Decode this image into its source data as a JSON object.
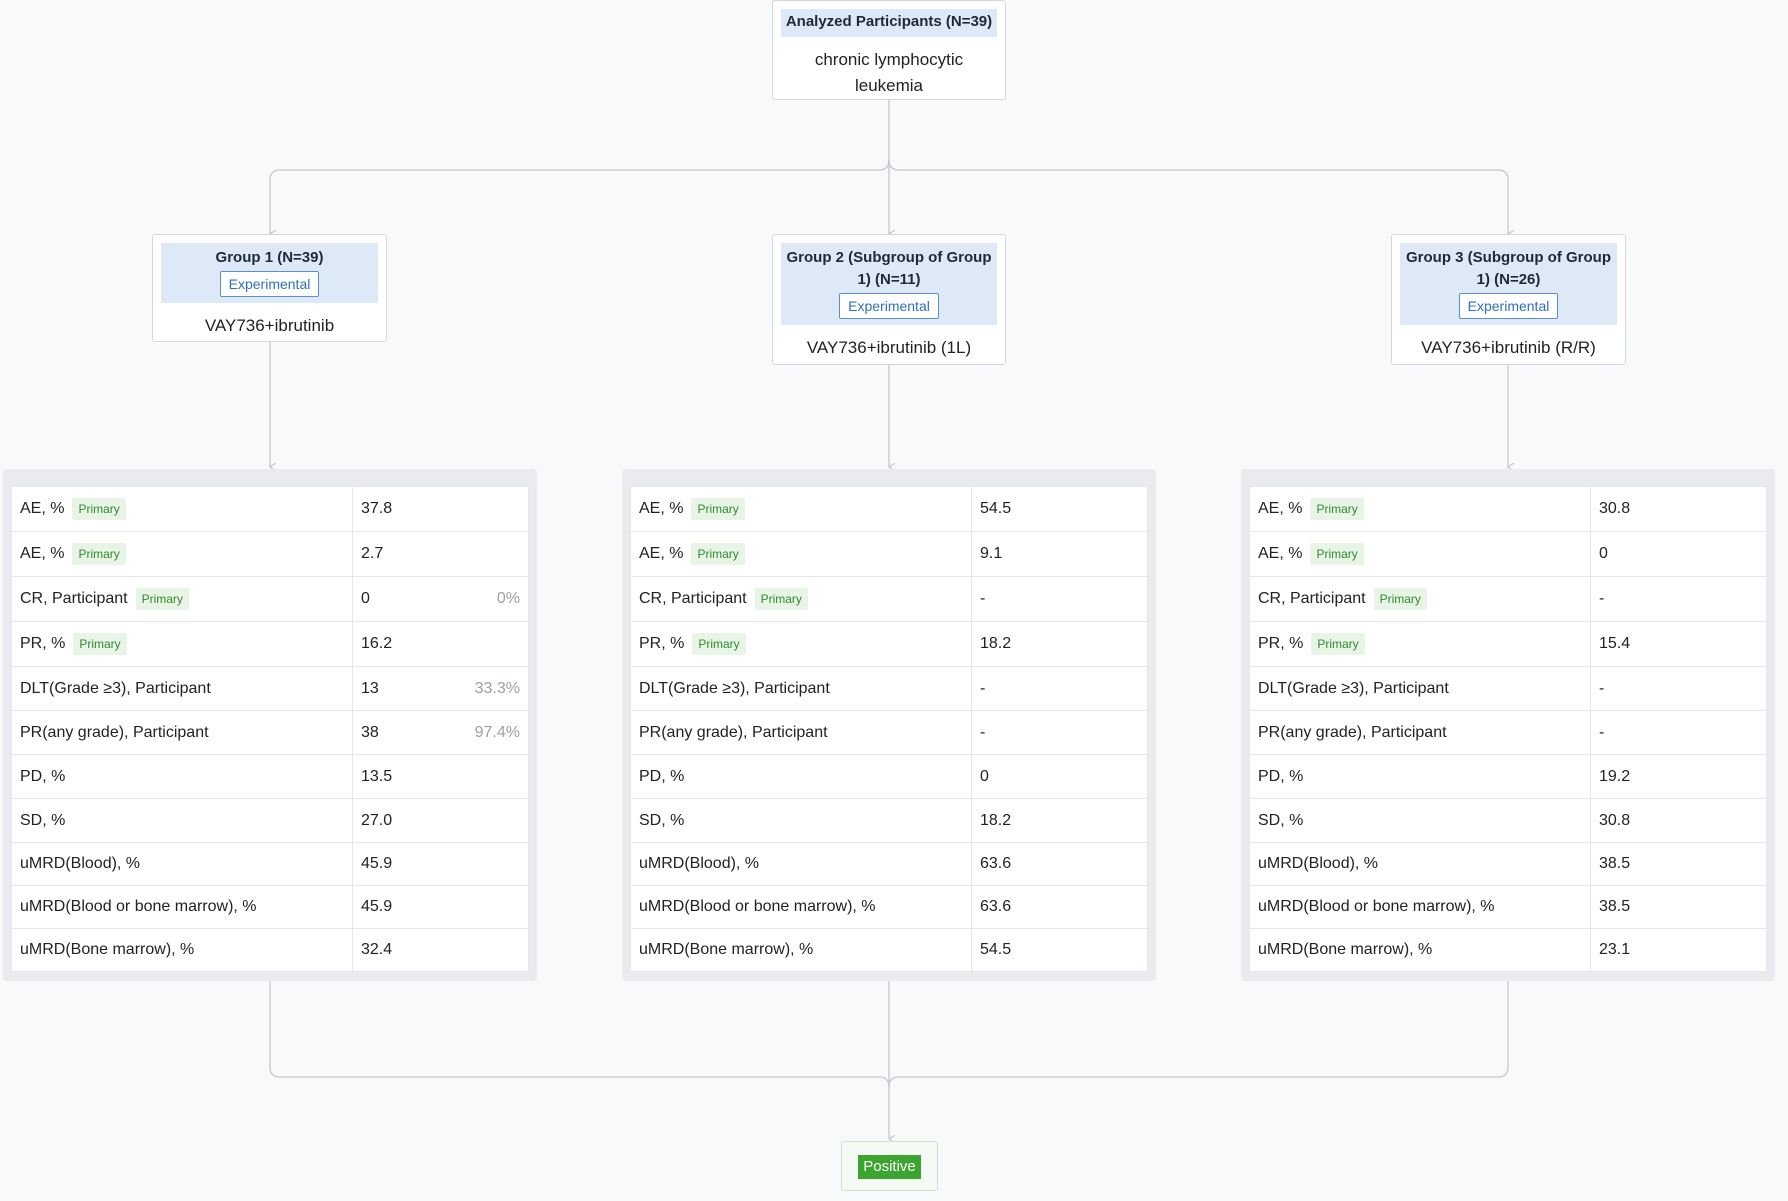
{
  "root": {
    "title": "Analyzed Participants (N=39)",
    "condition": "chronic lymphocytic leukemia"
  },
  "groups": [
    {
      "title": "Group 1 (N=39)",
      "badge": "Experimental",
      "intervention": "VAY736+ibrutinib",
      "rows": [
        {
          "label": "AE, %",
          "primary": "Primary",
          "value": "37.8",
          "pct": ""
        },
        {
          "label": "AE, %",
          "primary": "Primary",
          "value": "2.7",
          "pct": ""
        },
        {
          "label": "CR, Participant",
          "primary": "Primary",
          "value": "0",
          "pct": "0%"
        },
        {
          "label": "PR, %",
          "primary": "Primary",
          "value": "16.2",
          "pct": ""
        },
        {
          "label": "DLT(Grade ≥3), Participant",
          "primary": "",
          "value": "13",
          "pct": "33.3%"
        },
        {
          "label": "PR(any grade), Participant",
          "primary": "",
          "value": "38",
          "pct": "97.4%"
        },
        {
          "label": "PD, %",
          "primary": "",
          "value": "13.5",
          "pct": ""
        },
        {
          "label": "SD, %",
          "primary": "",
          "value": "27.0",
          "pct": ""
        },
        {
          "label": "uMRD(Blood), %",
          "primary": "",
          "value": "45.9",
          "pct": ""
        },
        {
          "label": "uMRD(Blood or bone marrow), %",
          "primary": "",
          "value": "45.9",
          "pct": ""
        },
        {
          "label": "uMRD(Bone marrow), %",
          "primary": "",
          "value": "32.4",
          "pct": ""
        }
      ]
    },
    {
      "title": "Group 2 (Subgroup of Group 1) (N=11)",
      "badge": "Experimental",
      "intervention": "VAY736+ibrutinib (1L)",
      "rows": [
        {
          "label": "AE, %",
          "primary": "Primary",
          "value": "54.5",
          "pct": ""
        },
        {
          "label": "AE, %",
          "primary": "Primary",
          "value": "9.1",
          "pct": ""
        },
        {
          "label": "CR, Participant",
          "primary": "Primary",
          "value": "-",
          "pct": ""
        },
        {
          "label": "PR, %",
          "primary": "Primary",
          "value": "18.2",
          "pct": ""
        },
        {
          "label": "DLT(Grade ≥3), Participant",
          "primary": "",
          "value": "-",
          "pct": ""
        },
        {
          "label": "PR(any grade), Participant",
          "primary": "",
          "value": "-",
          "pct": ""
        },
        {
          "label": "PD, %",
          "primary": "",
          "value": "0",
          "pct": ""
        },
        {
          "label": "SD, %",
          "primary": "",
          "value": "18.2",
          "pct": ""
        },
        {
          "label": "uMRD(Blood), %",
          "primary": "",
          "value": "63.6",
          "pct": ""
        },
        {
          "label": "uMRD(Blood or bone marrow), %",
          "primary": "",
          "value": "63.6",
          "pct": ""
        },
        {
          "label": "uMRD(Bone marrow), %",
          "primary": "",
          "value": "54.5",
          "pct": ""
        }
      ]
    },
    {
      "title": "Group 3 (Subgroup of Group 1) (N=26)",
      "badge": "Experimental",
      "intervention": "VAY736+ibrutinib (R/R)",
      "rows": [
        {
          "label": "AE, %",
          "primary": "Primary",
          "value": "30.8",
          "pct": ""
        },
        {
          "label": "AE, %",
          "primary": "Primary",
          "value": "0",
          "pct": ""
        },
        {
          "label": "CR, Participant",
          "primary": "Primary",
          "value": "-",
          "pct": ""
        },
        {
          "label": "PR, %",
          "primary": "Primary",
          "value": "15.4",
          "pct": ""
        },
        {
          "label": "DLT(Grade ≥3), Participant",
          "primary": "",
          "value": "-",
          "pct": ""
        },
        {
          "label": "PR(any grade), Participant",
          "primary": "",
          "value": "-",
          "pct": ""
        },
        {
          "label": "PD, %",
          "primary": "",
          "value": "19.2",
          "pct": ""
        },
        {
          "label": "SD, %",
          "primary": "",
          "value": "30.8",
          "pct": ""
        },
        {
          "label": "uMRD(Blood), %",
          "primary": "",
          "value": "38.5",
          "pct": ""
        },
        {
          "label": "uMRD(Blood or bone marrow), %",
          "primary": "",
          "value": "38.5",
          "pct": ""
        },
        {
          "label": "uMRD(Bone marrow), %",
          "primary": "",
          "value": "23.1",
          "pct": ""
        }
      ]
    }
  ],
  "outcome": {
    "label": "Positive"
  },
  "colors": {
    "header_bg": "#dde9f6",
    "experimental": "#2f6fbf",
    "primary_bg": "#e8f5e6",
    "primary_text": "#2e8b2e",
    "positive": "#3ba52f",
    "connector": "#c4c8ce"
  }
}
